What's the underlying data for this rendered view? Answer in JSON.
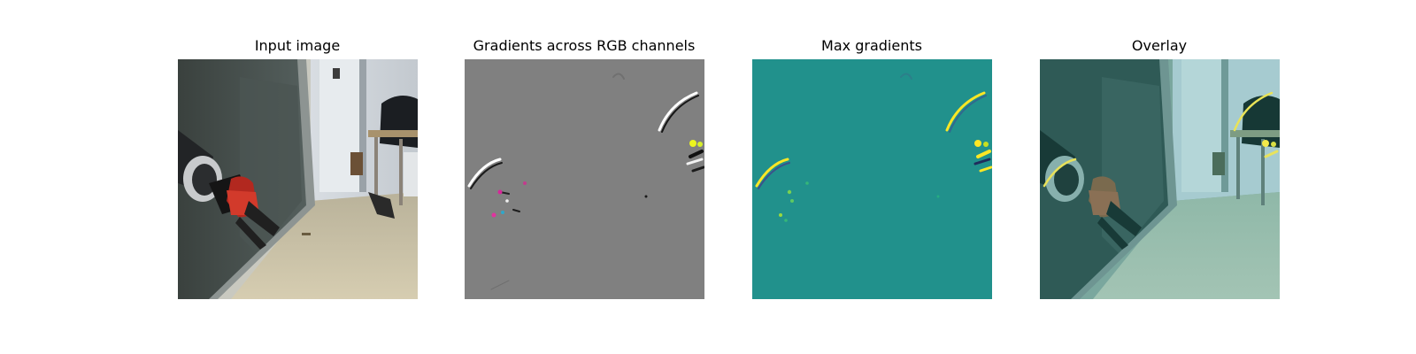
{
  "figure": {
    "panels": [
      {
        "title": "Input image"
      },
      {
        "title": "Gradients across RGB channels"
      },
      {
        "title": "Max gradients"
      },
      {
        "title": "Overlay"
      }
    ]
  },
  "colors": {
    "background": "#ffffff",
    "gradient_gray": "#808080",
    "viridis_base": "#21918c",
    "viridis_high": "#fde725",
    "overlay_tint": "#2aa59a"
  }
}
